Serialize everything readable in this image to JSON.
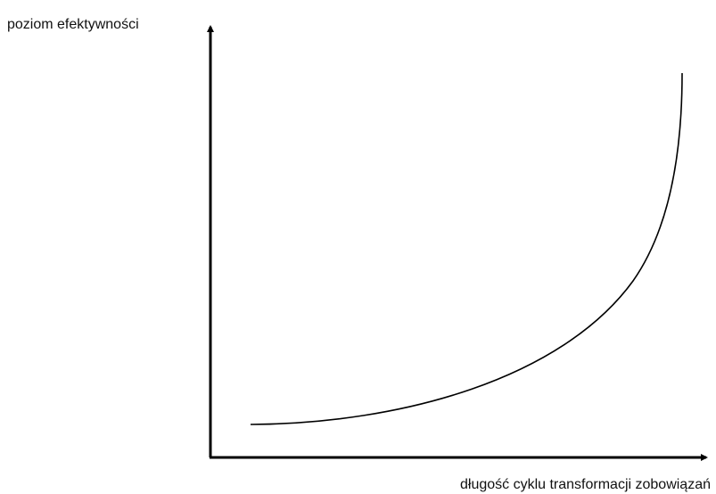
{
  "axes": {
    "y_label": "poziom efektywności",
    "x_label": "długość cyklu transformacji zobowiązań"
  }
}
